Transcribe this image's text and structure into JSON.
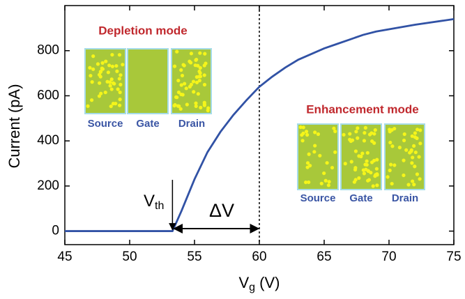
{
  "chart_data": {
    "type": "line",
    "x_label": [
      "V",
      "g",
      " (V)"
    ],
    "y_label": "Current (pA)",
    "series": [
      {
        "color": "#3152a5",
        "x": [
          45,
          50,
          53.3,
          54,
          55,
          56,
          57,
          58,
          59,
          60,
          61,
          62,
          63,
          64,
          65,
          66,
          67,
          68,
          69,
          70,
          72,
          75
        ],
        "values": [
          0,
          0,
          0,
          90,
          230,
          350,
          440,
          515,
          580,
          640,
          685,
          725,
          760,
          785,
          810,
          830,
          850,
          870,
          885,
          895,
          915,
          940
        ]
      }
    ],
    "xlim": [
      45,
      75
    ],
    "xticks": [
      45,
      50,
      55,
      60,
      65,
      70,
      75
    ],
    "ylim": [
      -60,
      1000
    ],
    "yticks": [
      0,
      200,
      400,
      600,
      800
    ],
    "vline": 60,
    "vth": 53.3,
    "vth_label": [
      "V",
      "th"
    ],
    "delta_label": "ΔV",
    "depletion": {
      "title": "Depletion mode",
      "labels": [
        "Source",
        "Gate",
        "Drain"
      ]
    },
    "enhancement": {
      "title": "Enhancement mode",
      "labels": [
        "Source",
        "Gate",
        "Drain"
      ]
    }
  }
}
